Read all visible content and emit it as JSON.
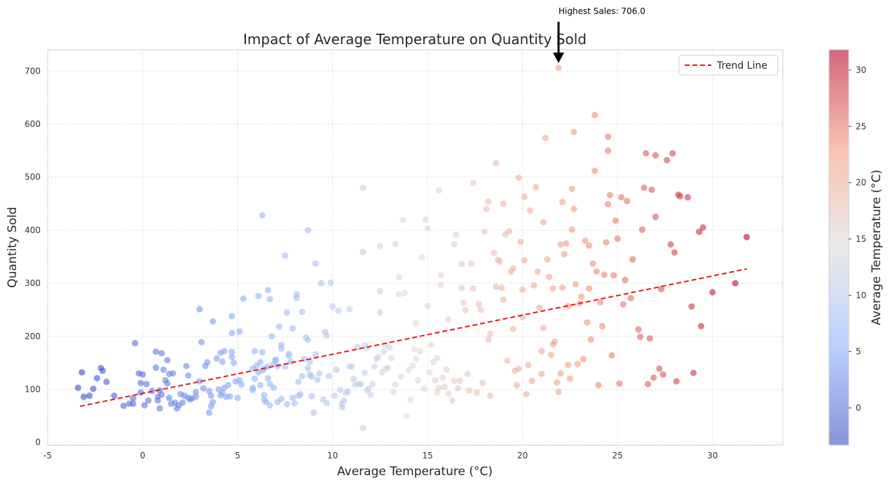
{
  "chart_data": {
    "type": "scatter",
    "title": "Impact of Average Temperature on Quantity Sold",
    "xlabel": "Average Temperature (°C)",
    "ylabel": "Quantity Sold",
    "xlim": [
      -5,
      33.7
    ],
    "ylim": [
      -5,
      740
    ],
    "xticks": [
      -5,
      0,
      5,
      10,
      15,
      20,
      25,
      30
    ],
    "yticks": [
      0,
      100,
      200,
      300,
      400,
      500,
      600,
      700
    ],
    "grid": true,
    "legend": {
      "position": "top-right",
      "entries": [
        "Trend Line"
      ]
    },
    "trend_line": {
      "name": "Trend Line",
      "color": "#e31a1c",
      "x": [
        -3.3,
        31.8
      ],
      "y": [
        68,
        327
      ]
    },
    "annotation": {
      "text": "Highest Sales: 706.0",
      "x": 21.9,
      "y": 706
    },
    "colorbar": {
      "label": "Average Temperature (°C)",
      "range": [
        -3.3,
        31.8
      ],
      "ticks": [
        0,
        5,
        10,
        15,
        20,
        25,
        30
      ],
      "colormap": "coolwarm"
    },
    "points": [
      [
        -3.4,
        103
      ],
      [
        -3.2,
        132
      ],
      [
        -3.1,
        86
      ],
      [
        -2.8,
        88
      ],
      [
        -2.6,
        101
      ],
      [
        -2.4,
        121
      ],
      [
        -2.2,
        140
      ],
      [
        -2.1,
        135
      ],
      [
        -1.9,
        114
      ],
      [
        -1.5,
        88
      ],
      [
        -1.0,
        69
      ],
      [
        -0.7,
        73
      ],
      [
        -0.5,
        73
      ],
      [
        -0.5,
        83
      ],
      [
        -0.4,
        187
      ],
      [
        -0.2,
        130
      ],
      [
        -0.1,
        112
      ],
      [
        -0.1,
        94
      ],
      [
        0.0,
        128
      ],
      [
        0.1,
        70
      ],
      [
        0.2,
        110
      ],
      [
        0.3,
        79
      ],
      [
        0.5,
        97
      ],
      [
        0.7,
        141
      ],
      [
        0.7,
        171
      ],
      [
        0.8,
        79
      ],
      [
        0.8,
        86
      ],
      [
        0.9,
        98
      ],
      [
        0.9,
        64
      ],
      [
        1.0,
        90
      ],
      [
        1.0,
        168
      ],
      [
        1.1,
        137
      ],
      [
        1.2,
        117
      ],
      [
        1.3,
        111
      ],
      [
        1.3,
        155
      ],
      [
        1.4,
        84
      ],
      [
        1.4,
        129
      ],
      [
        1.5,
        73
      ],
      [
        1.6,
        130
      ],
      [
        1.7,
        75
      ],
      [
        1.8,
        64
      ],
      [
        1.9,
        70
      ],
      [
        2.0,
        91
      ],
      [
        2.1,
        75
      ],
      [
        2.2,
        88
      ],
      [
        2.3,
        144
      ],
      [
        2.4,
        126
      ],
      [
        2.4,
        84
      ],
      [
        2.5,
        81
      ],
      [
        2.6,
        83
      ],
      [
        2.8,
        86
      ],
      [
        2.8,
        95
      ],
      [
        3.0,
        115
      ],
      [
        3.0,
        251
      ],
      [
        3.1,
        189
      ],
      [
        3.2,
        102
      ],
      [
        3.3,
        144
      ],
      [
        3.4,
        151
      ],
      [
        3.5,
        56
      ],
      [
        3.5,
        97
      ],
      [
        3.6,
        88
      ],
      [
        3.6,
        68
      ],
      [
        3.7,
        228
      ],
      [
        3.7,
        76
      ],
      [
        3.9,
        158
      ],
      [
        4.0,
        100
      ],
      [
        4.1,
        169
      ],
      [
        4.1,
        89
      ],
      [
        4.2,
        94
      ],
      [
        4.2,
        152
      ],
      [
        4.3,
        172
      ],
      [
        4.3,
        103
      ],
      [
        4.4,
        86
      ],
      [
        4.5,
        108
      ],
      [
        4.6,
        87
      ],
      [
        4.7,
        171
      ],
      [
        4.7,
        238
      ],
      [
        4.7,
        206
      ],
      [
        4.7,
        161
      ],
      [
        4.8,
        150
      ],
      [
        4.9,
        115
      ],
      [
        5.0,
        84
      ],
      [
        5.1,
        209
      ],
      [
        5.1,
        117
      ],
      [
        5.2,
        109
      ],
      [
        5.3,
        271
      ],
      [
        5.8,
        139
      ],
      [
        5.8,
        103
      ],
      [
        5.8,
        99
      ],
      [
        5.9,
        172
      ],
      [
        5.9,
        120
      ],
      [
        6.0,
        145
      ],
      [
        6.1,
        276
      ],
      [
        6.1,
        132
      ],
      [
        6.2,
        108
      ],
      [
        6.2,
        151
      ],
      [
        6.3,
        170
      ],
      [
        6.3,
        136
      ],
      [
        6.3,
        428
      ],
      [
        6.4,
        139
      ],
      [
        6.4,
        80
      ],
      [
        6.4,
        89
      ],
      [
        6.5,
        76
      ],
      [
        6.6,
        121
      ],
      [
        6.6,
        143
      ],
      [
        6.6,
        287
      ],
      [
        6.7,
        270
      ],
      [
        6.7,
        110
      ],
      [
        6.7,
        70
      ],
      [
        6.8,
        200
      ],
      [
        6.9,
        148
      ],
      [
        6.9,
        103
      ],
      [
        7.0,
        155
      ],
      [
        7.0,
        156
      ],
      [
        7.1,
        76
      ],
      [
        7.1,
        144
      ],
      [
        7.2,
        218
      ],
      [
        7.3,
        177
      ],
      [
        7.3,
        184
      ],
      [
        7.3,
        82
      ],
      [
        7.5,
        352
      ],
      [
        7.5,
        143
      ],
      [
        7.6,
        72
      ],
      [
        7.6,
        245
      ],
      [
        7.7,
        163
      ],
      [
        7.7,
        167
      ],
      [
        7.8,
        152
      ],
      [
        7.9,
        215
      ],
      [
        7.9,
        84
      ],
      [
        8.0,
        74
      ],
      [
        8.1,
        272
      ],
      [
        8.1,
        279
      ],
      [
        8.2,
        114
      ],
      [
        8.2,
        88
      ],
      [
        8.3,
        91
      ],
      [
        8.4,
        246
      ],
      [
        8.4,
        125
      ],
      [
        8.5,
        157
      ],
      [
        8.6,
        198
      ],
      [
        8.7,
        140
      ],
      [
        8.7,
        193
      ],
      [
        8.7,
        400
      ],
      [
        8.8,
        128
      ],
      [
        8.8,
        151
      ],
      [
        8.9,
        124
      ],
      [
        8.9,
        87
      ],
      [
        9.0,
        56
      ],
      [
        9.1,
        337
      ],
      [
        9.1,
        166
      ],
      [
        9.2,
        118
      ],
      [
        9.3,
        130
      ],
      [
        9.4,
        300
      ],
      [
        9.5,
        81
      ],
      [
        9.6,
        208
      ],
      [
        9.7,
        74
      ],
      [
        9.7,
        201
      ],
      [
        9.8,
        125
      ],
      [
        9.9,
        301
      ],
      [
        10.0,
        256
      ],
      [
        10.1,
        88
      ],
      [
        10.2,
        137
      ],
      [
        10.3,
        248
      ],
      [
        10.4,
        99
      ],
      [
        10.5,
        66
      ],
      [
        10.5,
        73
      ],
      [
        10.6,
        79
      ],
      [
        10.7,
        93
      ],
      [
        10.8,
        96
      ],
      [
        10.9,
        143
      ],
      [
        10.9,
        251
      ],
      [
        11.0,
        143
      ],
      [
        11.1,
        120
      ],
      [
        11.2,
        109
      ],
      [
        11.3,
        180
      ],
      [
        11.4,
        110
      ],
      [
        11.5,
        110
      ],
      [
        11.6,
        359
      ],
      [
        11.6,
        480
      ],
      [
        11.6,
        27
      ],
      [
        11.7,
        183
      ],
      [
        11.7,
        131
      ],
      [
        11.8,
        177
      ],
      [
        11.8,
        98
      ],
      [
        11.9,
        101
      ],
      [
        12.0,
        90
      ],
      [
        12.1,
        110
      ],
      [
        12.2,
        143
      ],
      [
        12.3,
        157
      ],
      [
        12.4,
        161
      ],
      [
        12.5,
        245
      ],
      [
        12.5,
        285
      ],
      [
        12.5,
        370
      ],
      [
        12.6,
        132
      ],
      [
        12.7,
        171
      ],
      [
        12.8,
        183
      ],
      [
        12.8,
        138
      ],
      [
        12.9,
        141
      ],
      [
        13.0,
        179
      ],
      [
        13.1,
        159
      ],
      [
        13.2,
        95
      ],
      [
        13.3,
        374
      ],
      [
        13.3,
        109
      ],
      [
        13.5,
        311
      ],
      [
        13.5,
        279
      ],
      [
        13.6,
        124
      ],
      [
        13.7,
        419
      ],
      [
        13.8,
        282
      ],
      [
        13.9,
        50
      ],
      [
        14.0,
        136
      ],
      [
        14.1,
        80
      ],
      [
        14.2,
        145
      ],
      [
        14.3,
        176
      ],
      [
        14.4,
        157
      ],
      [
        14.4,
        224
      ],
      [
        14.5,
        117
      ],
      [
        14.6,
        172
      ],
      [
        14.7,
        349
      ],
      [
        14.8,
        101
      ],
      [
        14.9,
        420
      ],
      [
        15.0,
        257
      ],
      [
        15.0,
        403
      ],
      [
        15.1,
        132
      ],
      [
        15.2,
        184
      ],
      [
        15.3,
        151
      ],
      [
        15.4,
        117
      ],
      [
        15.5,
        94
      ],
      [
        15.5,
        159
      ],
      [
        15.6,
        103
      ],
      [
        15.6,
        475
      ],
      [
        15.7,
        297
      ],
      [
        15.7,
        315
      ],
      [
        15.8,
        122
      ],
      [
        15.9,
        105
      ],
      [
        16.0,
        137
      ],
      [
        16.1,
        232
      ],
      [
        16.1,
        92
      ],
      [
        16.3,
        79
      ],
      [
        16.4,
        116
      ],
      [
        16.4,
        373
      ],
      [
        16.5,
        391
      ],
      [
        16.6,
        102
      ],
      [
        16.7,
        116
      ],
      [
        16.8,
        291
      ],
      [
        16.8,
        336
      ],
      [
        16.9,
        263
      ],
      [
        17.0,
        249
      ],
      [
        17.1,
        129
      ],
      [
        17.2,
        98
      ],
      [
        17.3,
        337
      ],
      [
        17.4,
        489
      ],
      [
        17.4,
        290
      ],
      [
        17.6,
        94
      ],
      [
        17.7,
        261
      ],
      [
        17.8,
        250
      ],
      [
        17.9,
        112
      ],
      [
        18.0,
        397
      ],
      [
        18.1,
        440
      ],
      [
        18.2,
        454
      ],
      [
        18.2,
        194
      ],
      [
        18.3,
        205
      ],
      [
        18.3,
        88
      ],
      [
        18.5,
        357
      ],
      [
        18.6,
        293
      ],
      [
        18.6,
        526
      ],
      [
        18.7,
        344
      ],
      [
        18.8,
        341
      ],
      [
        18.9,
        291
      ],
      [
        19.0,
        450
      ],
      [
        19.0,
        269
      ],
      [
        19.1,
        392
      ],
      [
        19.2,
        154
      ],
      [
        19.3,
        398
      ],
      [
        19.4,
        322
      ],
      [
        19.5,
        214
      ],
      [
        19.5,
        328
      ],
      [
        19.6,
        135
      ],
      [
        19.7,
        108
      ],
      [
        19.8,
        139
      ],
      [
        19.8,
        499
      ],
      [
        19.9,
        378
      ],
      [
        20.0,
        288
      ],
      [
        20.0,
        236
      ],
      [
        20.1,
        463
      ],
      [
        20.1,
        343
      ],
      [
        20.2,
        91
      ],
      [
        20.3,
        146
      ],
      [
        20.4,
        437
      ],
      [
        20.5,
        116
      ],
      [
        20.6,
        296
      ],
      [
        20.7,
        481
      ],
      [
        20.8,
        322
      ],
      [
        20.9,
        254
      ],
      [
        21.0,
        172
      ],
      [
        21.0,
        129
      ],
      [
        21.1,
        415
      ],
      [
        21.1,
        216
      ],
      [
        21.2,
        574
      ],
      [
        21.3,
        345
      ],
      [
        21.4,
        312
      ],
      [
        21.5,
        165
      ],
      [
        21.6,
        290
      ],
      [
        21.6,
        185
      ],
      [
        21.7,
        190
      ],
      [
        21.8,
        113
      ],
      [
        21.9,
        95
      ],
      [
        21.9,
        706
      ],
      [
        22.0,
        130
      ],
      [
        22.0,
        373
      ],
      [
        22.1,
        292
      ],
      [
        22.1,
        453
      ],
      [
        22.2,
        355
      ],
      [
        22.3,
        375
      ],
      [
        22.4,
        257
      ],
      [
        22.4,
        146
      ],
      [
        22.5,
        120
      ],
      [
        22.6,
        401
      ],
      [
        22.6,
        478
      ],
      [
        22.7,
        585
      ],
      [
        22.7,
        440
      ],
      [
        22.8,
        298
      ],
      [
        22.9,
        148
      ],
      [
        23.0,
        262
      ],
      [
        23.1,
        275
      ],
      [
        23.2,
        157
      ],
      [
        23.3,
        380
      ],
      [
        23.4,
        226
      ],
      [
        23.5,
        371
      ],
      [
        23.5,
        290
      ],
      [
        23.6,
        194
      ],
      [
        23.7,
        337
      ],
      [
        23.8,
        617
      ],
      [
        23.8,
        512
      ],
      [
        23.9,
        322
      ],
      [
        24.0,
        108
      ],
      [
        24.1,
        264
      ],
      [
        24.2,
        219
      ],
      [
        24.3,
        316
      ],
      [
        24.4,
        377
      ],
      [
        24.5,
        449
      ],
      [
        24.5,
        550
      ],
      [
        24.5,
        576
      ],
      [
        24.6,
        466
      ],
      [
        24.7,
        164
      ],
      [
        24.8,
        315
      ],
      [
        24.9,
        418
      ],
      [
        25.0,
        384
      ],
      [
        25.1,
        111
      ],
      [
        25.2,
        462
      ],
      [
        25.3,
        260
      ],
      [
        25.4,
        306
      ],
      [
        25.5,
        455
      ],
      [
        25.7,
        272
      ],
      [
        25.8,
        345
      ],
      [
        26.1,
        213
      ],
      [
        26.2,
        199
      ],
      [
        26.3,
        401
      ],
      [
        26.4,
        480
      ],
      [
        26.5,
        545
      ],
      [
        26.6,
        110
      ],
      [
        26.7,
        196
      ],
      [
        26.8,
        476
      ],
      [
        26.9,
        122
      ],
      [
        27.0,
        425
      ],
      [
        27.0,
        541
      ],
      [
        27.2,
        139
      ],
      [
        27.3,
        289
      ],
      [
        27.4,
        128
      ],
      [
        27.6,
        532
      ],
      [
        27.8,
        373
      ],
      [
        27.9,
        545
      ],
      [
        28.0,
        358
      ],
      [
        28.1,
        115
      ],
      [
        28.2,
        467
      ],
      [
        28.3,
        464
      ],
      [
        28.7,
        462
      ],
      [
        28.9,
        256
      ],
      [
        29.0,
        131
      ],
      [
        29.3,
        397
      ],
      [
        29.4,
        219
      ],
      [
        29.5,
        405
      ],
      [
        30.0,
        283
      ],
      [
        31.2,
        300
      ],
      [
        31.8,
        387
      ]
    ]
  }
}
